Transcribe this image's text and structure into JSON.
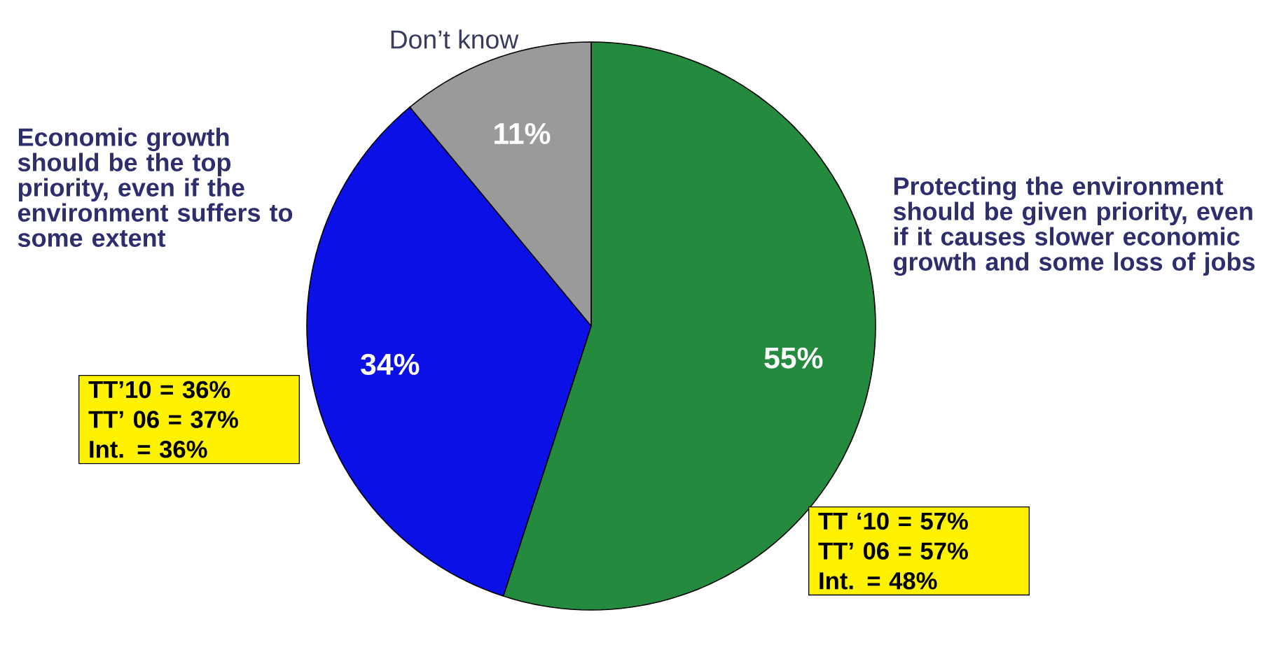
{
  "chart_data": {
    "type": "pie",
    "categories": [
      "Protecting the environment should be given priority, even if it causes slower economic growth and some loss of jobs",
      "Economic growth should be the top priority, even if the environment suffers to some extent",
      "Don’t know"
    ],
    "values": [
      55,
      34,
      11
    ],
    "colors": [
      "#238a3e",
      "#0a10e6",
      "#9a9a9a"
    ],
    "value_labels": [
      "55%",
      "34%",
      "11%"
    ],
    "annotations": [
      "TT ‘10 = 57%",
      "TT’ 06 = 57%",
      "Int.     = 48%",
      "TT’10 = 36%",
      "TT’ 06 = 37%",
      "Int.     = 36%"
    ]
  }
}
